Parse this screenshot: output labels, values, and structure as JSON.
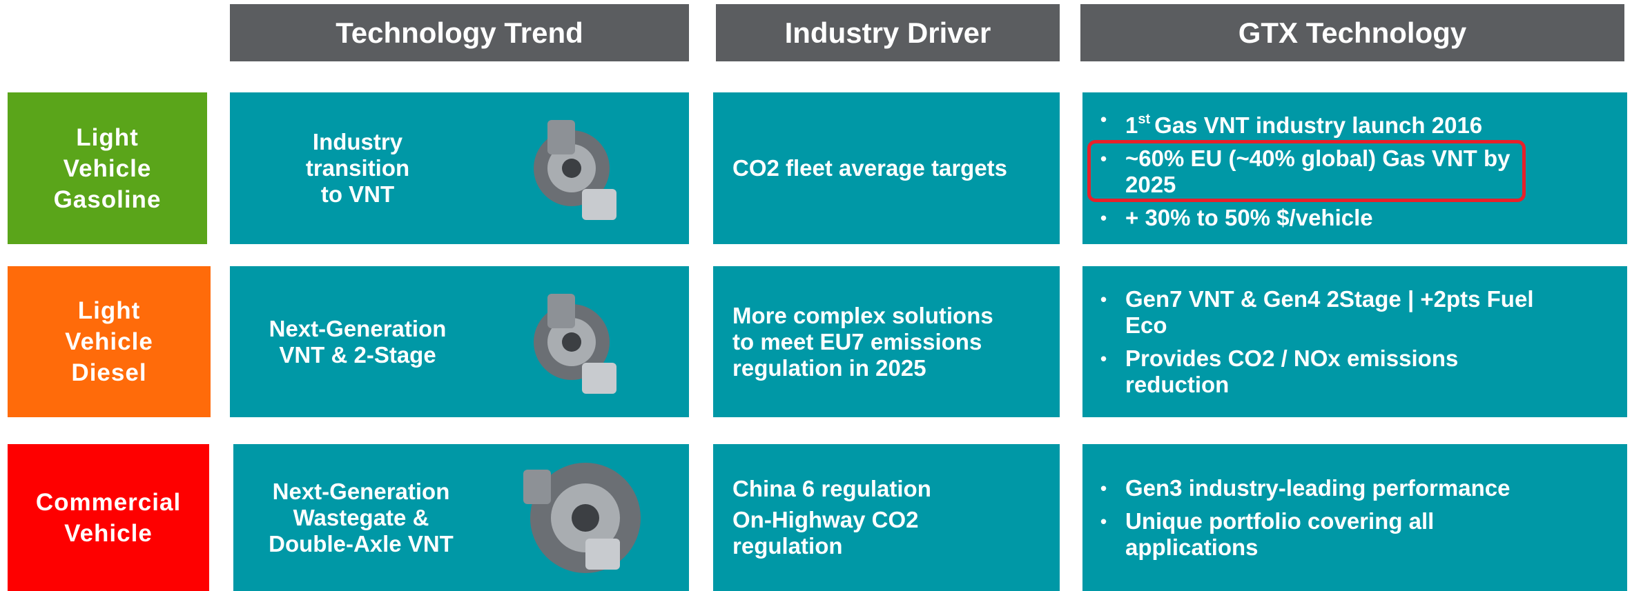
{
  "columns": [
    "Technology Trend",
    "Industry Driver",
    "GTX Technology"
  ],
  "rows": [
    {
      "segment": [
        "Light",
        "Vehicle",
        "Gasoline"
      ],
      "segment_color": "#5aa51a",
      "trend": [
        "Industry",
        "transition",
        "to VNT"
      ],
      "driver": [
        [
          "CO2 fleet average targets"
        ]
      ],
      "gtx": [
        {
          "prefix": "1",
          "sup": "st",
          "lines": [
            "Gas VNT industry launch 2016"
          ]
        },
        {
          "lines": [
            "~60% EU (~40% global) Gas VNT by",
            "2025"
          ],
          "highlight": true
        },
        {
          "lines": [
            "+ 30% to 50% $/vehicle"
          ]
        }
      ]
    },
    {
      "segment": [
        "Light",
        "Vehicle",
        "Diesel"
      ],
      "segment_color": "#ff6b0a",
      "trend": [
        "Next-Generation",
        "VNT & 2-Stage"
      ],
      "driver": [
        [
          "More complex solutions",
          "to meet EU7 emissions",
          "regulation in 2025"
        ]
      ],
      "gtx": [
        {
          "lines": [
            "Gen7 VNT & Gen4 2Stage | +2pts Fuel",
            "Eco"
          ]
        },
        {
          "lines": [
            "Provides CO2 / NOx emissions",
            "reduction"
          ]
        }
      ]
    },
    {
      "segment": [
        "Commercial",
        "Vehicle"
      ],
      "segment_color": "#fe0000",
      "trend": [
        "Next-Generation",
        "Wastegate &",
        "Double-Axle VNT"
      ],
      "driver": [
        [
          "China 6 regulation"
        ],
        [
          "On-Highway CO2",
          "regulation"
        ]
      ],
      "gtx": [
        {
          "lines": [
            "Gen3 industry-leading performance"
          ]
        },
        {
          "lines": [
            "Unique portfolio covering all",
            "applications"
          ]
        }
      ]
    }
  ]
}
